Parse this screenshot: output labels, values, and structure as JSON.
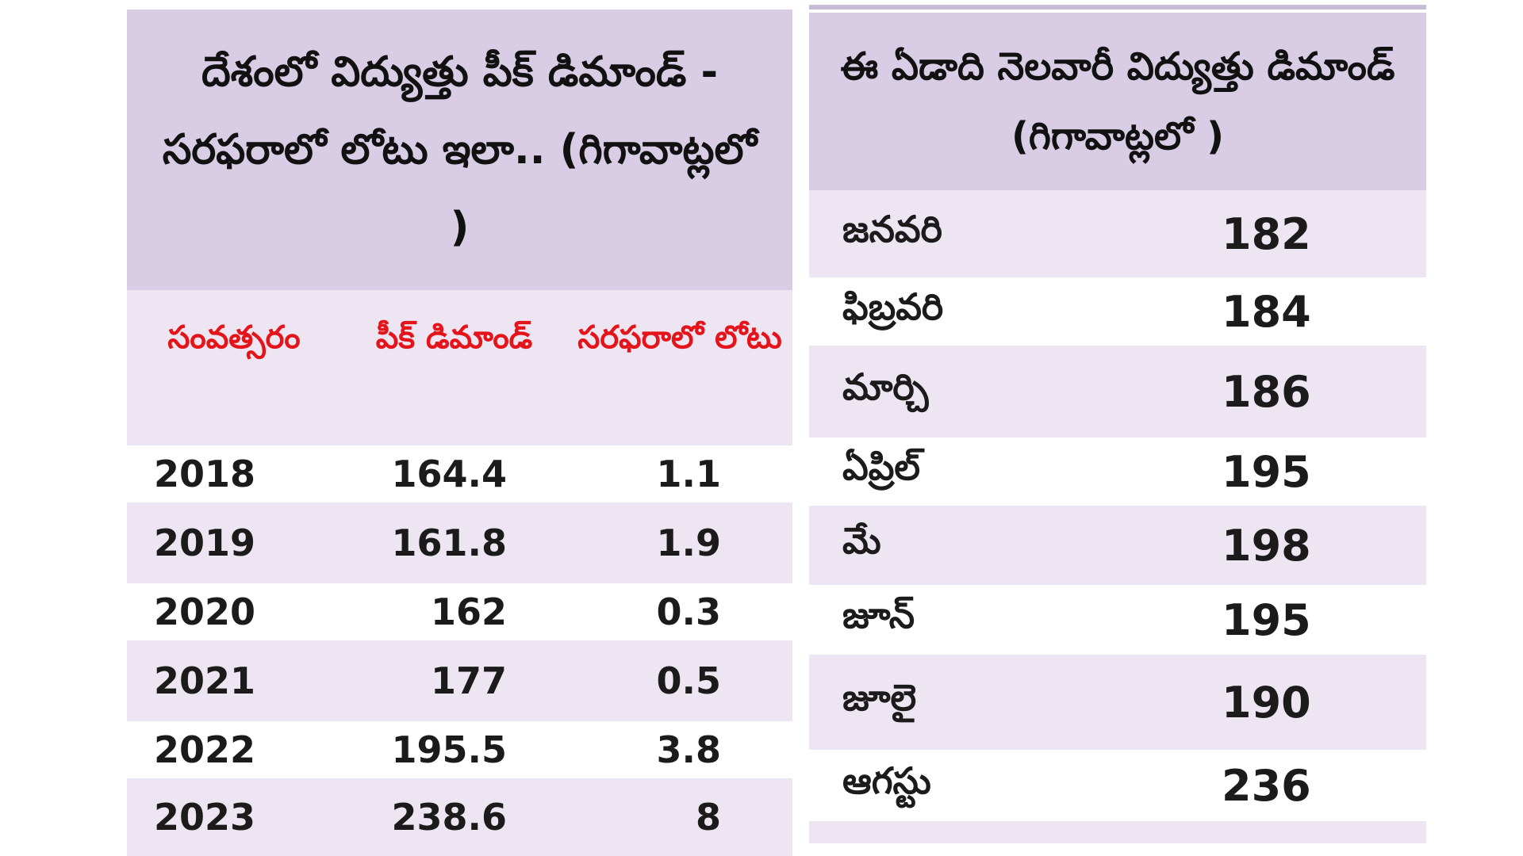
{
  "left_table": {
    "title": "దేశంలో విద్యుత్తు పీక్ డిమాండ్ - సరఫరాలో లోటు ఇలా.. (గిగావాట్లలో )",
    "columns": {
      "year": "సంవత్సరం",
      "peak_demand": "పీక్ డిమాండ్",
      "supply_deficit": "సరఫరాలో లోటు"
    },
    "rows": [
      {
        "year": "2018",
        "peak": "164.4",
        "deficit": "1.1"
      },
      {
        "year": "2019",
        "peak": "161.8",
        "deficit": "1.9"
      },
      {
        "year": "2020",
        "peak": "162",
        "deficit": "0.3"
      },
      {
        "year": "2021",
        "peak": "177",
        "deficit": "0.5"
      },
      {
        "year": "2022",
        "peak": "195.5",
        "deficit": "3.8"
      },
      {
        "year": "2023",
        "peak": "238.6",
        "deficit": "8"
      }
    ]
  },
  "right_table": {
    "title": "ఈ ఏడాది నెలవారీ విద్యుత్తు డిమాండ్ (గిగావాట్లలో )",
    "rows": [
      {
        "month": "జనవరి",
        "value": "182"
      },
      {
        "month": "ఫిబ్రవరి",
        "value": "184"
      },
      {
        "month": "మార్చి",
        "value": "186"
      },
      {
        "month": "ఏప్రిల్",
        "value": "195"
      },
      {
        "month": "మే",
        "value": "198"
      },
      {
        "month": "జూన్",
        "value": "195"
      },
      {
        "month": "జూలై",
        "value": "190"
      },
      {
        "month": "ఆగస్టు",
        "value": "236"
      }
    ]
  },
  "colors": {
    "header_bg": "#d8cde5",
    "shade_bg": "#ede6f2",
    "column_header_text": "#e4141b",
    "body_text": "#1b1b1b"
  }
}
